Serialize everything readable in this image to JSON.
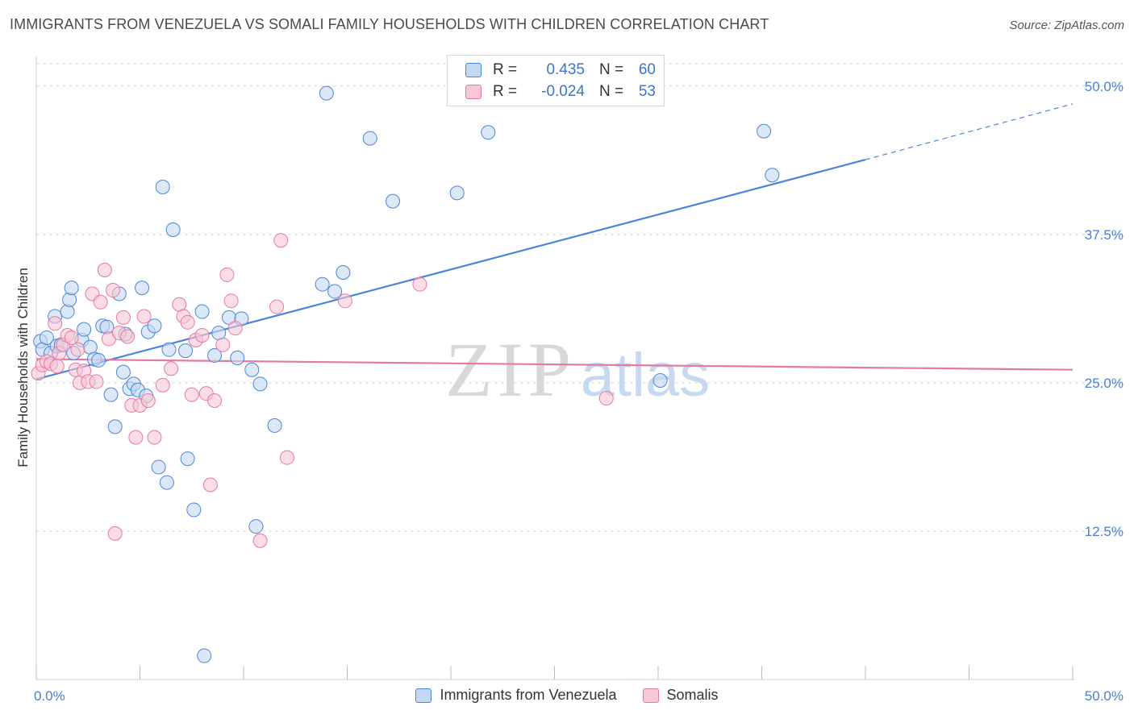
{
  "title": "IMMIGRANTS FROM VENEZUELA VS SOMALI FAMILY HOUSEHOLDS WITH CHILDREN CORRELATION CHART",
  "source": "Source: ZipAtlas.com",
  "watermark": {
    "zip": "ZIP",
    "atlas": "atlas"
  },
  "legend_top": {
    "rows": [
      {
        "r_label": "R =",
        "r_value": "0.435",
        "n_label": "N =",
        "n_value": "60"
      },
      {
        "r_label": "R =",
        "r_value": "-0.024",
        "n_label": "N =",
        "n_value": "53"
      }
    ]
  },
  "legend_bottom": [
    "Immigrants from Venezuela",
    "Somalis"
  ],
  "colors": {
    "blue": "#4a86d8",
    "blue_fill": "#c5d8f3",
    "pink": "#e57aa0",
    "pink_fill": "#f6c7d6",
    "grid": "#d9d9d9"
  },
  "chart_data": {
    "type": "scatter",
    "title": "IMMIGRANTS FROM VENEZUELA VS SOMALI FAMILY HOUSEHOLDS WITH CHILDREN CORRELATION CHART",
    "xlabel": "",
    "ylabel": "Family Households with Children",
    "xlim": [
      0,
      50
    ],
    "ylim": [
      0,
      52.5
    ],
    "x_tick_labels": [
      {
        "value": 0,
        "label": "0.0%"
      },
      {
        "value": 50,
        "label": "50.0%"
      }
    ],
    "y_ticks": [
      {
        "value": 12.5,
        "label": "12.5%"
      },
      {
        "value": 25,
        "label": "25.0%"
      },
      {
        "value": 37.5,
        "label": "37.5%"
      },
      {
        "value": 50,
        "label": "50.0%"
      }
    ],
    "series": [
      {
        "name": "Immigrants from Venezuela",
        "color": "blue",
        "points": [
          [
            0.2,
            28.5
          ],
          [
            0.3,
            27.8
          ],
          [
            0.5,
            28.8
          ],
          [
            0.7,
            27.5
          ],
          [
            0.9,
            30.6
          ],
          [
            1.0,
            28.1
          ],
          [
            1.2,
            28.2
          ],
          [
            1.5,
            31.0
          ],
          [
            1.6,
            32.0
          ],
          [
            1.7,
            33.0
          ],
          [
            1.8,
            27.5
          ],
          [
            2.2,
            28.6
          ],
          [
            2.3,
            29.5
          ],
          [
            2.6,
            28.0
          ],
          [
            2.8,
            27.0
          ],
          [
            3.0,
            26.9
          ],
          [
            3.2,
            29.8
          ],
          [
            3.4,
            29.7
          ],
          [
            3.6,
            24.0
          ],
          [
            3.8,
            21.3
          ],
          [
            4.0,
            32.5
          ],
          [
            4.2,
            25.9
          ],
          [
            4.3,
            29.1
          ],
          [
            4.5,
            24.5
          ],
          [
            4.7,
            24.9
          ],
          [
            4.9,
            24.4
          ],
          [
            5.1,
            33.0
          ],
          [
            5.3,
            23.9
          ],
          [
            5.4,
            29.3
          ],
          [
            5.7,
            29.8
          ],
          [
            5.9,
            17.9
          ],
          [
            6.1,
            41.5
          ],
          [
            6.3,
            16.6
          ],
          [
            6.4,
            27.8
          ],
          [
            6.6,
            37.9
          ],
          [
            7.2,
            27.7
          ],
          [
            7.3,
            18.6
          ],
          [
            7.6,
            14.3
          ],
          [
            8.0,
            31.0
          ],
          [
            8.1,
            2.0
          ],
          [
            8.6,
            27.3
          ],
          [
            8.8,
            29.2
          ],
          [
            9.3,
            30.5
          ],
          [
            9.7,
            27.1
          ],
          [
            9.9,
            30.4
          ],
          [
            10.4,
            26.1
          ],
          [
            10.6,
            12.9
          ],
          [
            10.8,
            24.9
          ],
          [
            11.5,
            21.4
          ],
          [
            13.8,
            33.3
          ],
          [
            14.0,
            49.4
          ],
          [
            14.4,
            32.7
          ],
          [
            14.8,
            34.3
          ],
          [
            16.1,
            45.6
          ],
          [
            17.2,
            40.3
          ],
          [
            20.3,
            41.0
          ],
          [
            21.8,
            46.1
          ],
          [
            30.1,
            25.2
          ],
          [
            35.1,
            46.2
          ],
          [
            35.5,
            42.5
          ]
        ],
        "trend": {
          "x0": 0,
          "y0": 25.3,
          "x1": 40,
          "y1": 43.8,
          "dashed_x1": 50,
          "dashed_y1": 48.5
        }
      },
      {
        "name": "Somalis",
        "color": "pink",
        "points": [
          [
            0.1,
            25.8
          ],
          [
            0.3,
            26.5
          ],
          [
            0.5,
            26.8
          ],
          [
            0.7,
            26.6
          ],
          [
            0.9,
            30.0
          ],
          [
            1.1,
            27.5
          ],
          [
            1.3,
            28.2
          ],
          [
            1.5,
            29.0
          ],
          [
            1.7,
            28.8
          ],
          [
            1.9,
            26.1
          ],
          [
            2.1,
            25.0
          ],
          [
            2.3,
            26.0
          ],
          [
            2.5,
            25.1
          ],
          [
            2.7,
            32.5
          ],
          [
            2.9,
            25.1
          ],
          [
            3.1,
            31.8
          ],
          [
            3.3,
            34.5
          ],
          [
            3.5,
            28.7
          ],
          [
            3.7,
            32.8
          ],
          [
            3.8,
            12.3
          ],
          [
            4.0,
            29.2
          ],
          [
            4.2,
            30.5
          ],
          [
            4.4,
            28.9
          ],
          [
            4.6,
            23.1
          ],
          [
            4.8,
            20.4
          ],
          [
            5.0,
            23.1
          ],
          [
            5.2,
            30.6
          ],
          [
            5.4,
            23.5
          ],
          [
            5.7,
            20.4
          ],
          [
            6.1,
            24.8
          ],
          [
            6.5,
            26.2
          ],
          [
            6.9,
            31.6
          ],
          [
            7.1,
            30.6
          ],
          [
            7.3,
            30.1
          ],
          [
            7.5,
            24.0
          ],
          [
            7.7,
            28.6
          ],
          [
            8.0,
            29.0
          ],
          [
            8.2,
            24.1
          ],
          [
            8.4,
            16.4
          ],
          [
            8.6,
            23.5
          ],
          [
            9.0,
            28.2
          ],
          [
            9.2,
            34.1
          ],
          [
            9.4,
            31.9
          ],
          [
            9.6,
            29.6
          ],
          [
            10.8,
            11.7
          ],
          [
            11.6,
            31.4
          ],
          [
            11.8,
            37.0
          ],
          [
            12.1,
            18.7
          ],
          [
            14.9,
            31.9
          ],
          [
            18.5,
            33.3
          ],
          [
            27.5,
            23.7
          ],
          [
            2.0,
            27.8
          ],
          [
            1.0,
            26.4
          ]
        ],
        "trend": {
          "x0": 0,
          "y0": 27.0,
          "x1": 50,
          "y1": 26.1
        }
      }
    ]
  }
}
